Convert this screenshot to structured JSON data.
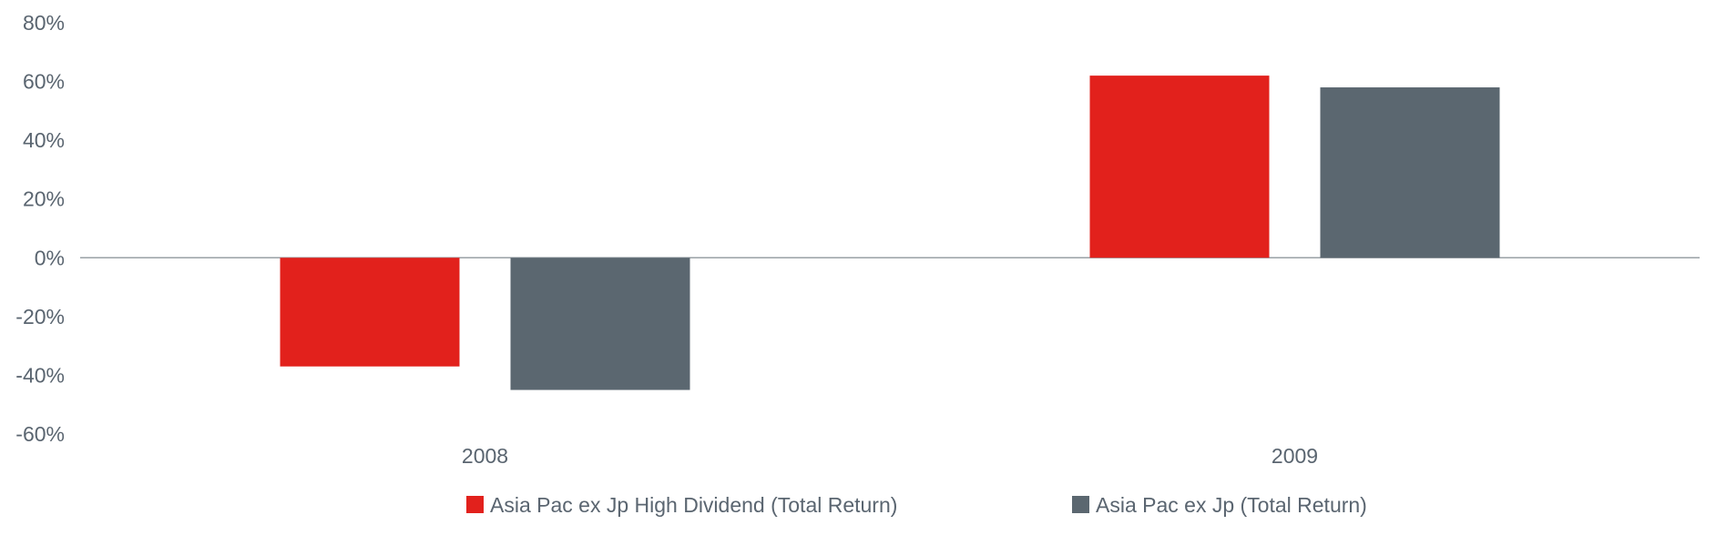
{
  "chart_data": {
    "type": "bar",
    "categories": [
      "2008",
      "2009"
    ],
    "series": [
      {
        "name": "Asia Pac ex Jp High Dividend (Total Return)",
        "color": "#e2211c",
        "values": [
          -37,
          62
        ]
      },
      {
        "name": "Asia Pac ex Jp (Total Return)",
        "color": "#5b6770",
        "values": [
          -45,
          58
        ]
      }
    ],
    "ylim": [
      -60,
      80
    ],
    "yticks": [
      80,
      60,
      40,
      20,
      0,
      -20,
      -40,
      -60
    ],
    "ytick_labels": [
      "80%",
      "60%",
      "40%",
      "20%",
      "0%",
      "-20%",
      "-40%",
      "-60%"
    ],
    "grid": false,
    "legend_position": "bottom",
    "zero_line_color": "#9aa0a6",
    "text_color": "#5a6570"
  }
}
